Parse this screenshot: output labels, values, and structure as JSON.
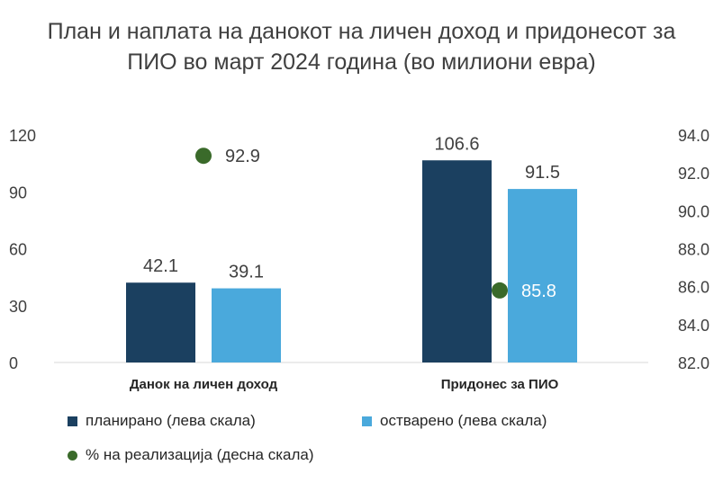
{
  "chart_data": {
    "type": "bar",
    "title": "План и наплата на данокот на личен доход и придонесот за ПИО во март 2024 година (во милиони евра)",
    "categories": [
      "Данок на личен доход",
      "Придонес за ПИО"
    ],
    "series": [
      {
        "name": "планирано (лева скала)",
        "values": [
          42.1,
          106.6
        ],
        "color": "#1b4060",
        "axis": "left",
        "kind": "bar"
      },
      {
        "name": "остварено (лева скала)",
        "values": [
          39.1,
          91.5
        ],
        "color": "#4aa9dc",
        "axis": "left",
        "kind": "bar"
      },
      {
        "name": "% на реализација (десна скала)",
        "values": [
          92.9,
          85.8
        ],
        "color": "#3a6a2a",
        "axis": "right",
        "kind": "scatter"
      }
    ],
    "data_labels": {
      "bars": [
        [
          "42.1",
          "106.6"
        ],
        [
          "39.1",
          "91.5"
        ]
      ],
      "points": [
        "92.9",
        "85.8"
      ]
    },
    "y_left": {
      "ylim": [
        0,
        120
      ],
      "ticks": [
        "0",
        "30",
        "60",
        "90",
        "120"
      ]
    },
    "y_right": {
      "ylim": [
        82,
        94
      ],
      "ticks": [
        "82.0",
        "84.0",
        "86.0",
        "88.0",
        "90.0",
        "92.0",
        "94.0"
      ]
    },
    "grid": false,
    "legend_position": "bottom"
  }
}
